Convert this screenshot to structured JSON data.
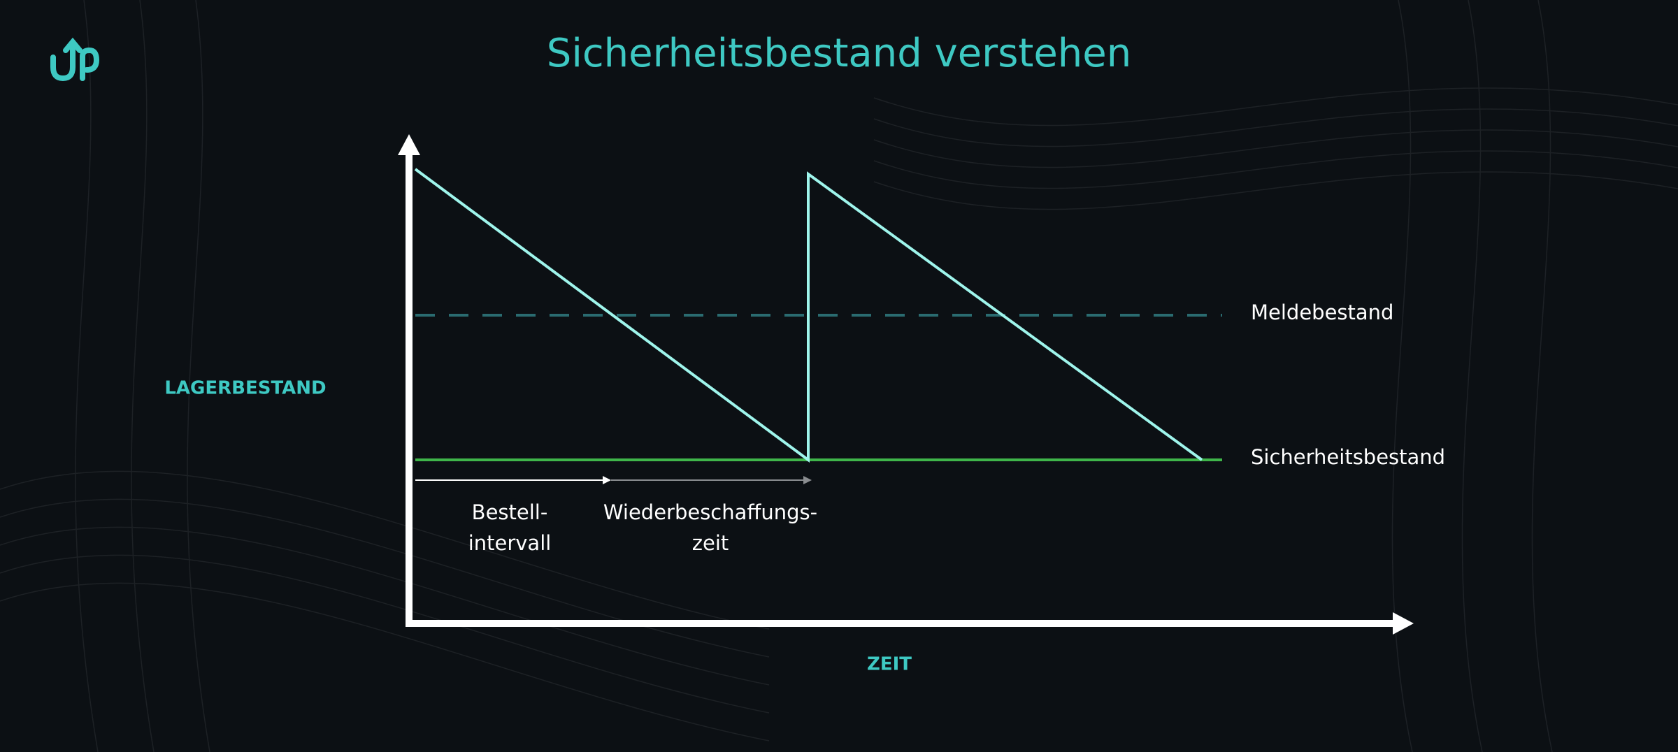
{
  "header": {
    "title": "Sicherheitsbestand verstehen"
  },
  "diagram": {
    "y_axis_label": "LAGERBESTAND",
    "x_axis_label": "ZEIT",
    "levels": [
      "Meldebestand",
      "Sicherheitsbestand"
    ],
    "intervals": [
      {
        "lines": [
          "Bestell-",
          "intervall"
        ]
      },
      {
        "lines": [
          "Wiederbeschaffungs-",
          "zeit"
        ]
      }
    ]
  }
}
